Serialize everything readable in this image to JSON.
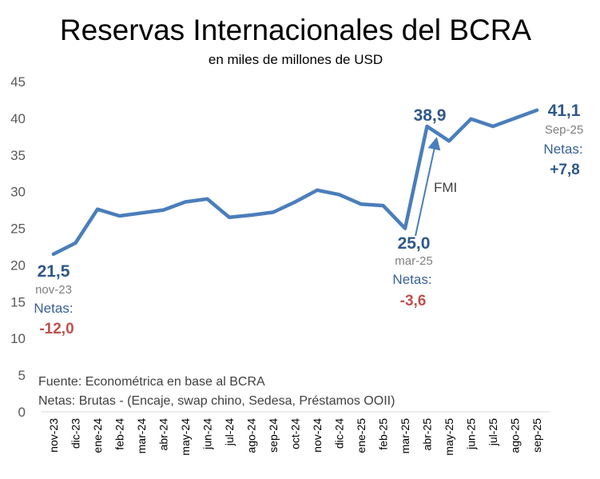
{
  "chart_data": {
    "type": "line",
    "title": "Reservas Internacionales del BCRA",
    "subtitle": "en miles de millones de USD",
    "categories": [
      "nov-23",
      "dic-23",
      "ene-24",
      "feb-24",
      "mar-24",
      "abr-24",
      "may-24",
      "jun-24",
      "jul-24",
      "ago-24",
      "sep-24",
      "oct-24",
      "nov-24",
      "dic-24",
      "ene-25",
      "feb-25",
      "mar-25",
      "abr-25",
      "may-25",
      "jun-25",
      "jul-25",
      "ago-25",
      "sep-25"
    ],
    "series": [
      {
        "values": [
          21.5,
          23.0,
          27.6,
          26.7,
          27.1,
          27.5,
          28.6,
          29.0,
          26.5,
          26.8,
          27.2,
          28.6,
          30.2,
          29.6,
          28.3,
          28.1,
          25.0,
          38.9,
          36.9,
          39.9,
          38.9,
          40.0,
          41.1
        ],
        "color": "#4a7ebb"
      }
    ],
    "ylim": [
      0,
      45
    ],
    "yticks": [
      "0",
      "5",
      "10",
      "15",
      "20",
      "25",
      "30",
      "35",
      "40",
      "45"
    ],
    "grid": false,
    "annotations": {
      "start": {
        "value": "21,5",
        "date": "nov-23",
        "netas_label": "Netas:",
        "netas_value": "-12,0"
      },
      "mid": {
        "value": "25,0",
        "date": "mar-25",
        "netas_label": "Netas:",
        "netas_value": "-3,6"
      },
      "peak": {
        "value": "38,9"
      },
      "fmi": {
        "label": "FMI"
      },
      "end": {
        "value": "41,1",
        "date": "Sep-25",
        "netas_label": "Netas:",
        "netas_value": "+7,8"
      }
    },
    "footnote": {
      "source": "Fuente:  Econométrica en base al BCRA",
      "netas_def": "Netas: Brutas - (Encaje, swap chino, Sedesa, Préstamos OOII)"
    },
    "colors": {
      "line": "#4a7ebb",
      "value_label": "#2e5888",
      "netas_label": "#376092",
      "negative": "#c0504d",
      "positive": "#2e5888",
      "date": "#7f7f7f",
      "axis_text": "#595959",
      "axis_line": "#d9d9d9"
    }
  }
}
